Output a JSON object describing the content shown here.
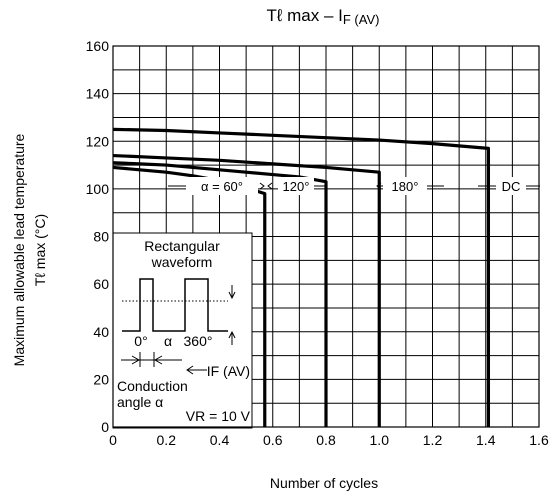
{
  "chart_data": {
    "type": "line",
    "title": {
      "main": "Tℓ max – I",
      "sub": "F (AV)"
    },
    "xlabel": "Number of cycles",
    "ylabel": {
      "line1": "Maximum allowable lead temperature",
      "line2": "Tℓ max    (°C)"
    },
    "xlim": [
      0,
      1.6
    ],
    "ylim": [
      0,
      160
    ],
    "x_ticks": [
      "0",
      "0.2",
      "0.4",
      "0.6",
      "0.8",
      "1.0",
      "1.2",
      "1.4",
      "1.6"
    ],
    "y_ticks": [
      "0",
      "20",
      "40",
      "60",
      "80",
      "100",
      "120",
      "140",
      "160"
    ],
    "grid": true,
    "series": [
      {
        "name": "α = 60°",
        "x": [
          0,
          0.1,
          0.2,
          0.3,
          0.4,
          0.5,
          0.57,
          0.57
        ],
        "y": [
          109,
          108,
          107,
          105.5,
          103.5,
          100.5,
          98,
          0
        ]
      },
      {
        "name": "120°",
        "x": [
          0,
          0.1,
          0.2,
          0.3,
          0.4,
          0.5,
          0.6,
          0.7,
          0.8,
          0.8
        ],
        "y": [
          111,
          110.5,
          110,
          109,
          108,
          107,
          106,
          105,
          103,
          0
        ]
      },
      {
        "name": "180°",
        "x": [
          0,
          0.2,
          0.4,
          0.6,
          0.8,
          1.0,
          1.0
        ],
        "y": [
          114,
          113,
          112,
          110.5,
          109,
          107,
          0
        ]
      },
      {
        "name": "DC",
        "x": [
          0,
          0.2,
          0.4,
          0.6,
          0.8,
          1.0,
          1.2,
          1.41,
          1.41
        ],
        "y": [
          125,
          124.5,
          123.5,
          122.5,
          121.5,
          120.5,
          119,
          117,
          0
        ]
      }
    ]
  },
  "inset": {
    "title_line1": "Rectangular",
    "title_line2": "waveform",
    "zero_label": "0°",
    "alpha_label": "α",
    "deg360_label": "360°",
    "current_label": "IF (AV)",
    "conduction_line1": "Conduction",
    "conduction_line2": "angle α",
    "vr_label": "VR = 10 V"
  }
}
